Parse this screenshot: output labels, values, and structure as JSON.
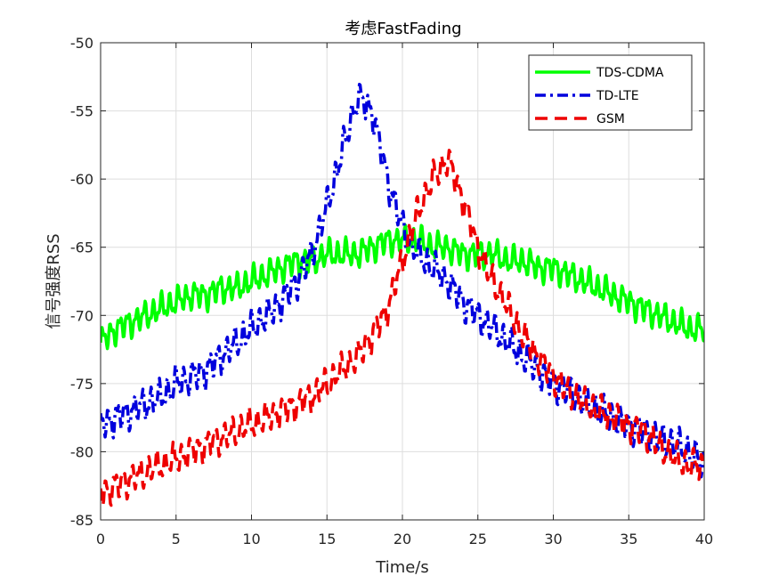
{
  "chart_data": {
    "type": "line",
    "title": "考虑FastFading",
    "xlabel": "Time/s",
    "ylabel": "信号强度RSS",
    "xlim": [
      0,
      40
    ],
    "ylim": [
      -85,
      -50
    ],
    "xticks": [
      "0",
      "5",
      "10",
      "15",
      "20",
      "25",
      "30",
      "35",
      "40"
    ],
    "yticks": [
      "-85",
      "-80",
      "-75",
      "-70",
      "-65",
      "-60",
      "-55",
      "-50"
    ],
    "grid": true,
    "legend_position": "top-right",
    "series": [
      {
        "name": "TDS-CDMA",
        "color": "#00ff00",
        "style": "solid",
        "x": [
          0,
          1,
          2,
          3,
          4,
          5,
          6,
          7,
          8,
          9,
          10,
          11,
          12,
          13,
          14,
          15,
          16,
          17,
          18,
          19,
          20,
          21,
          22,
          23,
          24,
          25,
          26,
          27,
          28,
          29,
          30,
          31,
          32,
          33,
          34,
          35,
          36,
          37,
          38,
          39,
          40
        ],
        "y": [
          -72,
          -71,
          -70.5,
          -70,
          -69.5,
          -69,
          -68.5,
          -68.5,
          -68,
          -68,
          -67.5,
          -67,
          -66.5,
          -66,
          -66,
          -65.5,
          -65.5,
          -65.5,
          -65,
          -64.5,
          -64.5,
          -64.5,
          -65,
          -65,
          -65.5,
          -65.5,
          -65.5,
          -66,
          -66,
          -66.5,
          -66.5,
          -67,
          -67.5,
          -68,
          -68.5,
          -69,
          -69.5,
          -70,
          -70.5,
          -71,
          -71
        ],
        "amp": 1.3
      },
      {
        "name": "TD-LTE",
        "color": "#0000dd",
        "style": "dash-dot",
        "x": [
          0,
          1,
          2,
          3,
          4,
          5,
          6,
          7,
          8,
          9,
          10,
          11,
          12,
          13,
          14,
          15,
          16,
          17,
          18,
          19,
          20,
          21,
          22,
          23,
          24,
          25,
          26,
          27,
          28,
          29,
          30,
          31,
          32,
          33,
          34,
          35,
          36,
          37,
          38,
          39,
          40
        ],
        "y": [
          -78,
          -77.5,
          -77,
          -76.5,
          -76,
          -75,
          -74.5,
          -74,
          -73,
          -72,
          -71,
          -70,
          -69,
          -67.5,
          -65.5,
          -62,
          -58,
          -54,
          -55,
          -60,
          -63.5,
          -65.5,
          -66.5,
          -67.5,
          -69,
          -70,
          -71,
          -72,
          -73,
          -74,
          -75,
          -75.5,
          -76.5,
          -77,
          -77.5,
          -78,
          -78.5,
          -79,
          -79.5,
          -80,
          -81
        ],
        "amp": 1.5
      },
      {
        "name": "GSM",
        "color": "#ee0000",
        "style": "dash",
        "x": [
          0,
          1,
          2,
          3,
          4,
          5,
          6,
          7,
          8,
          9,
          10,
          11,
          12,
          13,
          14,
          15,
          16,
          17,
          18,
          19,
          20,
          21,
          22,
          23,
          24,
          25,
          26,
          27,
          28,
          29,
          30,
          31,
          32,
          33,
          34,
          35,
          36,
          37,
          38,
          39,
          40
        ],
        "y": [
          -83,
          -82.5,
          -82,
          -81.5,
          -81,
          -80.5,
          -80,
          -79.5,
          -79,
          -78.5,
          -78,
          -77.5,
          -77,
          -76.5,
          -76,
          -75,
          -74,
          -73,
          -71.5,
          -69.5,
          -66,
          -62.5,
          -60,
          -58.5,
          -61.5,
          -65,
          -67.5,
          -69.5,
          -71.5,
          -73,
          -74.5,
          -75.5,
          -76.5,
          -77,
          -77.5,
          -78,
          -78.5,
          -79.5,
          -80.5,
          -81,
          -81
        ],
        "amp": 1.4
      }
    ]
  }
}
